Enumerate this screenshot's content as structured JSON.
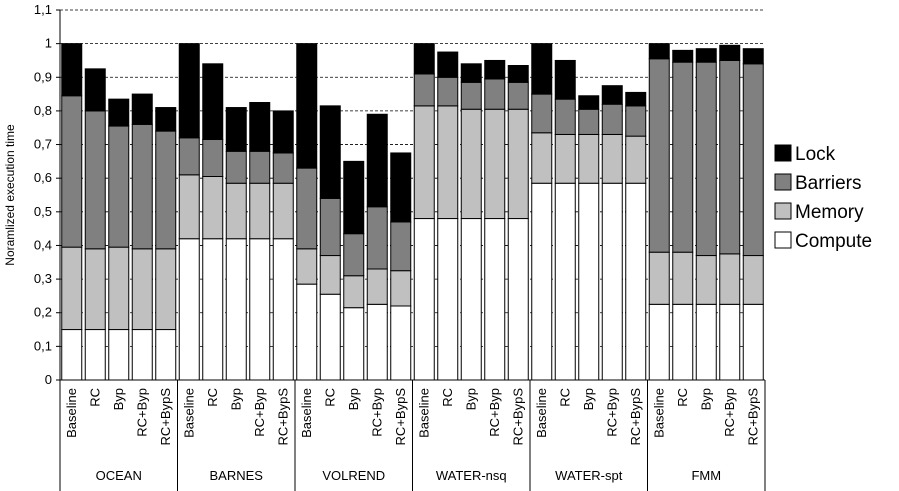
{
  "chart_data": {
    "type": "bar",
    "stacked": true,
    "ylabel": "Noramlized execution time",
    "ylim": [
      0,
      1.1
    ],
    "yticks": [
      "0",
      "0,1",
      "0,2",
      "0,3",
      "0,4",
      "0,5",
      "0,6",
      "0,7",
      "0,8",
      "0,9",
      "1",
      "1,1"
    ],
    "grid": "horizontal dashed",
    "legend_position": "right",
    "series": [
      {
        "name": "Compute",
        "color": "#ffffff"
      },
      {
        "name": "Memory",
        "color": "#c0c0c0"
      },
      {
        "name": "Barriers",
        "color": "#808080"
      },
      {
        "name": "Lock",
        "color": "#000000"
      }
    ],
    "legend_order": [
      "Lock",
      "Barriers",
      "Memory",
      "Compute"
    ],
    "groups": [
      {
        "name": "OCEAN",
        "bars": [
          {
            "label": "Baseline",
            "values": [
              0.15,
              0.245,
              0.45,
              0.155
            ]
          },
          {
            "label": "RC",
            "values": [
              0.15,
              0.24,
              0.41,
              0.125
            ]
          },
          {
            "label": "Byp",
            "values": [
              0.15,
              0.245,
              0.36,
              0.08
            ]
          },
          {
            "label": "RC+Byp",
            "values": [
              0.15,
              0.24,
              0.37,
              0.09
            ]
          },
          {
            "label": "RC+BypS",
            "values": [
              0.15,
              0.24,
              0.35,
              0.07
            ]
          }
        ]
      },
      {
        "name": "BARNES",
        "bars": [
          {
            "label": "Baseline",
            "values": [
              0.42,
              0.19,
              0.11,
              0.28
            ]
          },
          {
            "label": "RC",
            "values": [
              0.42,
              0.185,
              0.11,
              0.225
            ]
          },
          {
            "label": "Byp",
            "values": [
              0.42,
              0.165,
              0.095,
              0.13
            ]
          },
          {
            "label": "RC+Byp",
            "values": [
              0.42,
              0.165,
              0.095,
              0.145
            ]
          },
          {
            "label": "RC+BypS",
            "values": [
              0.42,
              0.165,
              0.09,
              0.125
            ]
          }
        ]
      },
      {
        "name": "VOLREND",
        "bars": [
          {
            "label": "Baseline",
            "values": [
              0.285,
              0.105,
              0.24,
              0.37
            ]
          },
          {
            "label": "RC",
            "values": [
              0.255,
              0.115,
              0.17,
              0.275
            ]
          },
          {
            "label": "Byp",
            "values": [
              0.215,
              0.095,
              0.125,
              0.215
            ]
          },
          {
            "label": "RC+Byp",
            "values": [
              0.225,
              0.105,
              0.185,
              0.275
            ]
          },
          {
            "label": "RC+BypS",
            "values": [
              0.22,
              0.105,
              0.145,
              0.205
            ]
          }
        ]
      },
      {
        "name": "WATER-nsq",
        "bars": [
          {
            "label": "Baseline",
            "values": [
              0.48,
              0.335,
              0.095,
              0.09
            ]
          },
          {
            "label": "RC",
            "values": [
              0.48,
              0.335,
              0.085,
              0.075
            ]
          },
          {
            "label": "Byp",
            "values": [
              0.48,
              0.325,
              0.08,
              0.055
            ]
          },
          {
            "label": "RC+Byp",
            "values": [
              0.48,
              0.325,
              0.09,
              0.055
            ]
          },
          {
            "label": "RC+BypS",
            "values": [
              0.48,
              0.325,
              0.08,
              0.05
            ]
          }
        ]
      },
      {
        "name": "WATER-spt",
        "bars": [
          {
            "label": "Baseline",
            "values": [
              0.585,
              0.15,
              0.115,
              0.15
            ]
          },
          {
            "label": "RC",
            "values": [
              0.585,
              0.145,
              0.105,
              0.115
            ]
          },
          {
            "label": "Byp",
            "values": [
              0.585,
              0.145,
              0.075,
              0.04
            ]
          },
          {
            "label": "RC+Byp",
            "values": [
              0.585,
              0.145,
              0.09,
              0.055
            ]
          },
          {
            "label": "RC+BypS",
            "values": [
              0.585,
              0.14,
              0.09,
              0.04
            ]
          }
        ]
      },
      {
        "name": "FMM",
        "bars": [
          {
            "label": "Baseline",
            "values": [
              0.225,
              0.155,
              0.575,
              0.045
            ]
          },
          {
            "label": "RC",
            "values": [
              0.225,
              0.155,
              0.565,
              0.035
            ]
          },
          {
            "label": "Byp",
            "values": [
              0.225,
              0.145,
              0.575,
              0.04
            ]
          },
          {
            "label": "RC+Byp",
            "values": [
              0.225,
              0.15,
              0.575,
              0.045
            ]
          },
          {
            "label": "RC+BypS",
            "values": [
              0.225,
              0.145,
              0.57,
              0.045
            ]
          }
        ]
      }
    ]
  }
}
